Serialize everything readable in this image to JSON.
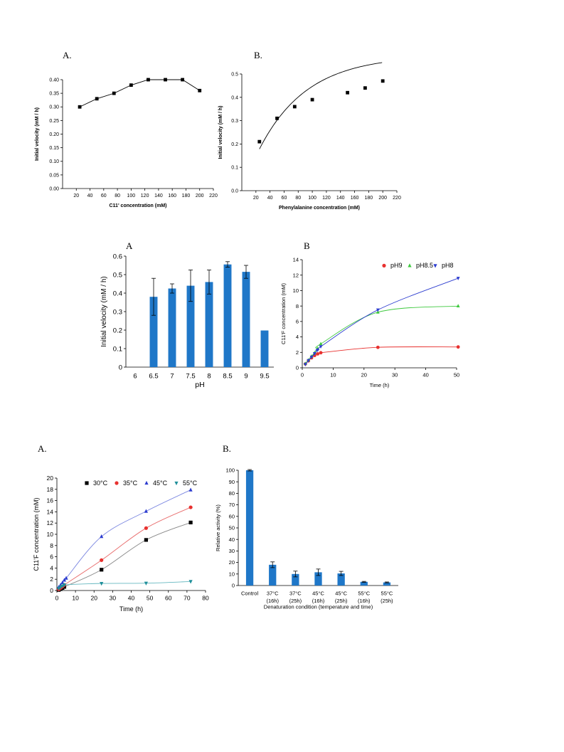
{
  "panel_labels": {
    "row1_left": "A.",
    "row1_right": "B.",
    "row2_left": "A",
    "row2_right": "B",
    "row3_left": "A.",
    "row3_right": "B."
  },
  "chart_data": [
    {
      "id": "c11_conc",
      "type": "line",
      "title": "",
      "xlabel": "C11' concentration (mM)",
      "ylabel": "Initial velocity (mM / h)",
      "xlim": [
        0,
        220
      ],
      "ylim": [
        0,
        0.4
      ],
      "xticks": [
        20,
        40,
        60,
        80,
        100,
        120,
        140,
        160,
        180,
        200,
        220
      ],
      "yticks": [
        0.0,
        0.05,
        0.1,
        0.15,
        0.2,
        0.25,
        0.3,
        0.35,
        0.4
      ],
      "ytick_labels": [
        "0.00",
        "0.05",
        "0.10",
        "0.15",
        "0.20",
        "0.25",
        "0.30",
        "0.35",
        "0.40"
      ],
      "grid": false,
      "marker": "square",
      "series": [
        {
          "x": [
            25,
            50,
            75,
            100,
            125,
            150,
            175,
            200
          ],
          "y": [
            0.3,
            0.33,
            0.35,
            0.38,
            0.4,
            0.4,
            0.4,
            0.36
          ]
        }
      ]
    },
    {
      "id": "phe_conc",
      "type": "scatter",
      "title": "",
      "xlabel": "Phenylalanine concentration (mM)",
      "ylabel": "Initial velocity (mM / h)",
      "xlim": [
        0,
        220
      ],
      "ylim": [
        0,
        0.5
      ],
      "xticks": [
        20,
        40,
        60,
        80,
        100,
        120,
        140,
        160,
        180,
        200,
        220
      ],
      "yticks": [
        0.0,
        0.1,
        0.2,
        0.3,
        0.4,
        0.5
      ],
      "ytick_labels": [
        "0.0",
        "0.1",
        "0.2",
        "0.3",
        "0.4",
        "0.5"
      ],
      "grid": false,
      "marker": "square",
      "series": [
        {
          "x": [
            25,
            50,
            75,
            100,
            150,
            175,
            200
          ],
          "y": [
            0.21,
            0.31,
            0.36,
            0.39,
            0.42,
            0.44,
            0.47
          ]
        }
      ],
      "fit_curve": true
    },
    {
      "id": "ph_bar",
      "type": "bar",
      "title": "",
      "xlabel": "pH",
      "ylabel": "Initial velocity (mM / h)",
      "categories": [
        "6",
        "6.5",
        "7",
        "7.5",
        "8",
        "8.5",
        "9",
        "9.5"
      ],
      "values": [
        0,
        0.38,
        0.425,
        0.44,
        0.46,
        0.555,
        0.515,
        0.198
      ],
      "errors": [
        0,
        0.1,
        0.025,
        0.085,
        0.065,
        0.015,
        0.035,
        0
      ],
      "ylim": [
        0,
        0.6
      ],
      "yticks": [
        0,
        0.1,
        0.2,
        0.3,
        0.4,
        0.5,
        0.6
      ],
      "ytick_labels": [
        "0",
        "0.1",
        "0.2",
        "0.3",
        "0.4",
        "0.5",
        "0.6"
      ],
      "color": "#1f77c8",
      "grid": false
    },
    {
      "id": "ph_time",
      "type": "line",
      "title": "",
      "xlabel": "Time (h)",
      "ylabel": "C11'F concentration (mM)",
      "xlim": [
        0,
        50
      ],
      "ylim": [
        0,
        14
      ],
      "xticks": [
        0,
        10,
        20,
        30,
        40,
        50
      ],
      "yticks": [
        0,
        2,
        4,
        6,
        8,
        10,
        12,
        14
      ],
      "legend_position": "top-right",
      "grid": false,
      "series": [
        {
          "name": "pH9",
          "color": "#e8312f",
          "marker": "circle",
          "x": [
            1,
            2,
            3,
            4,
            5,
            6,
            24.5,
            50.5
          ],
          "y": [
            0.5,
            0.9,
            1.3,
            1.6,
            1.8,
            1.95,
            2.65,
            2.7
          ]
        },
        {
          "name": "pH8.5",
          "color": "#3ec93e",
          "marker": "triangle-up",
          "x": [
            1,
            2,
            3,
            4,
            5,
            6,
            24.5,
            50.5
          ],
          "y": [
            0.55,
            1.0,
            1.5,
            1.95,
            2.5,
            3.1,
            7.2,
            8.0
          ]
        },
        {
          "name": "pH8",
          "color": "#2c3ccf",
          "marker": "triangle-down",
          "x": [
            1,
            2,
            3,
            4,
            5,
            6,
            24.5,
            50.5
          ],
          "y": [
            0.45,
            0.95,
            1.4,
            1.85,
            2.3,
            2.75,
            7.5,
            11.6
          ]
        }
      ]
    },
    {
      "id": "temp_time",
      "type": "line",
      "title": "",
      "xlabel": "Time (h)",
      "ylabel": "C11'F concentration (mM)",
      "xlim": [
        0,
        80
      ],
      "ylim": [
        0,
        20
      ],
      "xticks": [
        0,
        10,
        20,
        30,
        40,
        50,
        60,
        70,
        80
      ],
      "yticks": [
        0,
        2,
        4,
        6,
        8,
        10,
        12,
        14,
        16,
        18,
        20
      ],
      "legend_position": "top-right",
      "grid": false,
      "series": [
        {
          "name": "30°C",
          "color": "#000000",
          "marker": "square",
          "x": [
            1,
            2,
            3,
            4,
            24,
            48,
            72
          ],
          "y": [
            0.1,
            0.25,
            0.45,
            0.65,
            3.7,
            9.0,
            12.1
          ]
        },
        {
          "name": "35°C",
          "color": "#e8312f",
          "marker": "circle",
          "x": [
            1,
            2,
            3,
            4,
            24,
            48,
            72
          ],
          "y": [
            0.2,
            0.45,
            0.7,
            1.0,
            5.4,
            11.1,
            14.8
          ]
        },
        {
          "name": "45°C",
          "color": "#2c3ccf",
          "marker": "triangle-up",
          "x": [
            1,
            2,
            3,
            4,
            5,
            24,
            48,
            72
          ],
          "y": [
            0.6,
            1.0,
            1.4,
            1.85,
            2.2,
            9.6,
            14.1,
            17.9
          ]
        },
        {
          "name": "55°C",
          "color": "#1f8f9a",
          "marker": "triangle-down",
          "x": [
            1,
            2,
            3,
            4,
            24,
            48,
            72
          ],
          "y": [
            0.35,
            0.6,
            0.8,
            1.0,
            1.25,
            1.3,
            1.6
          ]
        }
      ]
    },
    {
      "id": "denaturation",
      "type": "bar",
      "title": "",
      "xlabel": "Denaturation condition (temperature and time)",
      "ylabel": "Relative activity (%)",
      "categories": [
        "Control",
        "37°C\n(16h)",
        "37°C\n(25h)",
        "45°C\n(16h)",
        "45°C\n(25h)",
        "55°C\n(16h)",
        "55°C\n(25h)"
      ],
      "values": [
        100,
        18,
        10,
        11.5,
        10.5,
        3.2,
        2.7
      ],
      "errors": [
        0.6,
        2.5,
        2.5,
        2.8,
        1.8,
        0.4,
        0.4
      ],
      "ylim": [
        0,
        100
      ],
      "yticks": [
        0,
        10,
        20,
        30,
        40,
        50,
        60,
        70,
        80,
        90,
        100
      ],
      "color": "#1f77c8",
      "grid": false
    }
  ]
}
